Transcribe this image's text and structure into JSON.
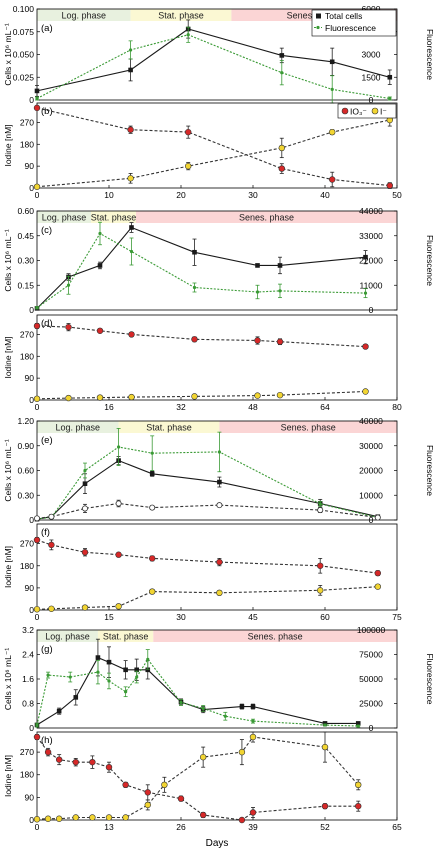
{
  "days_label": "Days",
  "phase_colors": {
    "log": "#e8f1df",
    "stat": "#fbf8d3",
    "senes": "#fbd5d5"
  },
  "series_colors": {
    "total": "#1a1a1a",
    "fluor": "#3a9a35",
    "iodate": "#d62828",
    "iodide": "#f2d532",
    "dashed": "#333333"
  },
  "chart_data": [
    {
      "id": "a",
      "type": "line",
      "ylabel": "Cells x 10⁶ mL⁻¹",
      "y2label": "Fluorescence",
      "xlim": [
        0,
        50
      ],
      "ylim": [
        0,
        0.1
      ],
      "y2lim": [
        0,
        6000
      ],
      "yticks": [
        "0",
        "0.025",
        "0.050",
        "0.075",
        "0.100"
      ],
      "ytick_values": [
        0,
        0.025,
        0.05,
        0.075,
        0.1
      ],
      "y2ticks": [
        "0",
        "1500",
        "3000",
        "4500",
        "6000"
      ],
      "y2tick_values": [
        0,
        1500,
        3000,
        4500,
        6000
      ],
      "phases": [
        {
          "label": "Log. phase",
          "kind": "log",
          "x0": 0,
          "x1": 13
        },
        {
          "label": "Stat. phase",
          "kind": "stat",
          "x0": 13,
          "x1": 27
        },
        {
          "label": "Senes. phase",
          "kind": "senes",
          "x0": 27,
          "x1": 50
        }
      ],
      "legend": [
        "Total cells",
        "Fluorescence"
      ],
      "series": [
        {
          "name": "Total cells",
          "axis": "y",
          "style": "total",
          "x": [
            0,
            13,
            21,
            34,
            41,
            49
          ],
          "y": [
            0.01,
            0.033,
            0.078,
            0.049,
            0.042,
            0.025
          ],
          "err": [
            0.006,
            0.012,
            0.01,
            0.008,
            0.015,
            0.008
          ]
        },
        {
          "name": "Fluorescence",
          "axis": "y2",
          "style": "fluor",
          "x": [
            0,
            13,
            21,
            34,
            41,
            49
          ],
          "y": [
            100,
            3300,
            4300,
            1800,
            700,
            100
          ],
          "err": [
            100,
            600,
            500,
            800,
            900,
            100
          ]
        }
      ]
    },
    {
      "id": "b",
      "type": "line",
      "ylabel": "Iodine [nM]",
      "xlim": [
        0,
        50
      ],
      "ylim": [
        0,
        350
      ],
      "yticks": [
        "0",
        "90",
        "180",
        "270"
      ],
      "ytick_values": [
        0,
        90,
        180,
        270
      ],
      "xticks": [
        "0",
        "10",
        "20",
        "30",
        "40",
        "50"
      ],
      "xtick_values": [
        0,
        10,
        20,
        30,
        40,
        50
      ],
      "legend": [
        "IO₃⁻",
        "I⁻"
      ],
      "series": [
        {
          "name": "IO₃⁻",
          "style": "iodate",
          "x": [
            0,
            13,
            21,
            34,
            41,
            49
          ],
          "y": [
            330,
            240,
            230,
            80,
            35,
            10
          ],
          "err": [
            8,
            15,
            25,
            20,
            30,
            12
          ]
        },
        {
          "name": "I⁻",
          "style": "iodide",
          "x": [
            0,
            13,
            21,
            34,
            41,
            49
          ],
          "y": [
            5,
            40,
            90,
            165,
            230,
            280
          ],
          "err": [
            5,
            20,
            15,
            40,
            10,
            25
          ]
        }
      ]
    },
    {
      "id": "c",
      "type": "line",
      "ylabel": "Cells x 10⁶ mL⁻¹",
      "y2label": "Fluorescence",
      "xlim": [
        0,
        80
      ],
      "ylim": [
        0,
        0.6
      ],
      "y2lim": [
        0,
        44000
      ],
      "yticks": [
        "0",
        "0.15",
        "0.30",
        "0.45",
        "0.60"
      ],
      "ytick_values": [
        0,
        0.15,
        0.3,
        0.45,
        0.6
      ],
      "y2ticks": [
        "0",
        "11000",
        "22000",
        "33000",
        "44000"
      ],
      "y2tick_values": [
        0,
        11000,
        22000,
        33000,
        44000
      ],
      "phases": [
        {
          "label": "Log. phase",
          "kind": "log",
          "x0": 0,
          "x1": 12
        },
        {
          "label": "Stat. phase",
          "kind": "stat",
          "x0": 12,
          "x1": 22
        },
        {
          "label": "Senes. phase",
          "kind": "senes",
          "x0": 22,
          "x1": 80
        }
      ],
      "series": [
        {
          "name": "Total cells",
          "axis": "y",
          "style": "total",
          "x": [
            0,
            7,
            14,
            21,
            35,
            49,
            54,
            73
          ],
          "y": [
            0.01,
            0.2,
            0.27,
            0.5,
            0.35,
            0.27,
            0.27,
            0.32
          ],
          "err": [
            0.01,
            0.02,
            0.02,
            0.03,
            0.08,
            0.01,
            0.05,
            0.04
          ]
        },
        {
          "name": "Fluorescence",
          "axis": "y2",
          "style": "fluor",
          "x": [
            0,
            7,
            14,
            21,
            35,
            49,
            54,
            73
          ],
          "y": [
            1000,
            11000,
            34000,
            26000,
            10000,
            8000,
            8500,
            7500
          ],
          "err": [
            500,
            4000,
            5000,
            6000,
            2000,
            3000,
            3000,
            2000
          ]
        }
      ]
    },
    {
      "id": "d",
      "type": "line",
      "ylabel": "Iodine [nM]",
      "xlim": [
        0,
        80
      ],
      "ylim": [
        0,
        350
      ],
      "yticks": [
        "0",
        "90",
        "180",
        "270"
      ],
      "ytick_values": [
        0,
        90,
        180,
        270
      ],
      "xticks": [
        "0",
        "16",
        "32",
        "48",
        "64",
        "80"
      ],
      "xtick_values": [
        0,
        16,
        32,
        48,
        64,
        80
      ],
      "series": [
        {
          "name": "IO₃⁻",
          "style": "iodate",
          "x": [
            0,
            7,
            14,
            21,
            35,
            49,
            54,
            73
          ],
          "y": [
            305,
            300,
            285,
            270,
            250,
            245,
            240,
            220
          ],
          "err": [
            10,
            15,
            8,
            8,
            10,
            15,
            12,
            8
          ]
        },
        {
          "name": "I⁻",
          "style": "iodide",
          "x": [
            0,
            7,
            14,
            21,
            35,
            49,
            54,
            73
          ],
          "y": [
            5,
            8,
            10,
            12,
            15,
            18,
            20,
            35
          ],
          "err": [
            3,
            3,
            4,
            4,
            4,
            5,
            5,
            5
          ]
        }
      ]
    },
    {
      "id": "e",
      "type": "line",
      "ylabel": "Cells x 10⁶ mL⁻¹",
      "y2label": "Fluorescence",
      "xlim": [
        0,
        75
      ],
      "ylim": [
        0,
        1.2
      ],
      "y2lim": [
        0,
        40000
      ],
      "yticks": [
        "0",
        "0.30",
        "0.60",
        "0.90",
        "1.20"
      ],
      "ytick_values": [
        0,
        0.3,
        0.6,
        0.9,
        1.2
      ],
      "y2ticks": [
        "0",
        "10000",
        "20000",
        "30000",
        "40000"
      ],
      "y2tick_values": [
        0,
        10000,
        20000,
        30000,
        40000
      ],
      "phases": [
        {
          "label": "Log. phase",
          "kind": "log",
          "x0": 0,
          "x1": 17
        },
        {
          "label": "Stat. phase",
          "kind": "stat",
          "x0": 17,
          "x1": 38
        },
        {
          "label": "Senes. phase",
          "kind": "senes",
          "x0": 38,
          "x1": 75
        }
      ],
      "series": [
        {
          "name": "Total cells",
          "axis": "y",
          "style": "total",
          "x": [
            0,
            3,
            10,
            17,
            24,
            38,
            59,
            71
          ],
          "y": [
            0.01,
            0.04,
            0.44,
            0.72,
            0.56,
            0.46,
            0.2,
            0.04
          ],
          "err": [
            0.01,
            0.02,
            0.12,
            0.05,
            0.03,
            0.06,
            0.05,
            0.01
          ]
        },
        {
          "name": "Fluorescence",
          "axis": "y2",
          "style": "fluor",
          "x": [
            0,
            3,
            10,
            17,
            24,
            38,
            59,
            71
          ],
          "y": [
            500,
            1000,
            20000,
            29500,
            27000,
            27500,
            6500,
            1000
          ],
          "err": [
            300,
            500,
            3000,
            7500,
            7000,
            8000,
            1000,
            300
          ]
        },
        {
          "name": "",
          "axis": "y",
          "style": "dashed",
          "x": [
            0,
            3,
            10,
            17,
            24,
            38,
            59,
            71
          ],
          "y": [
            0.02,
            0.04,
            0.14,
            0.2,
            0.15,
            0.18,
            0.12,
            0.03
          ],
          "err": [
            0.01,
            0.02,
            0.05,
            0.04,
            0.02,
            0.02,
            0.03,
            0.01
          ]
        }
      ]
    },
    {
      "id": "f",
      "type": "line",
      "ylabel": "Iodine [nM]",
      "xlim": [
        0,
        75
      ],
      "ylim": [
        0,
        350
      ],
      "yticks": [
        "0",
        "90",
        "180",
        "270"
      ],
      "ytick_values": [
        0,
        90,
        180,
        270
      ],
      "xticks": [
        "0",
        "15",
        "30",
        "45",
        "60",
        "75"
      ],
      "xtick_values": [
        0,
        15,
        30,
        45,
        60,
        75
      ],
      "series": [
        {
          "name": "IO₃⁻",
          "style": "iodate",
          "x": [
            0,
            3,
            10,
            17,
            24,
            38,
            59,
            71
          ],
          "y": [
            285,
            265,
            235,
            225,
            210,
            195,
            180,
            150
          ],
          "err": [
            10,
            20,
            15,
            8,
            10,
            15,
            30,
            10
          ]
        },
        {
          "name": "I⁻",
          "style": "iodide",
          "x": [
            0,
            3,
            10,
            17,
            24,
            38,
            59,
            71
          ],
          "y": [
            3,
            5,
            10,
            15,
            75,
            70,
            80,
            95
          ],
          "err": [
            3,
            3,
            5,
            5,
            8,
            8,
            20,
            8
          ]
        }
      ]
    },
    {
      "id": "g",
      "type": "line",
      "ylabel": "Cells x 10⁶ mL⁻¹",
      "y2label": "Fluorescence",
      "xlim": [
        0,
        65
      ],
      "ylim": [
        0,
        3.2
      ],
      "y2lim": [
        0,
        100000
      ],
      "yticks": [
        "0",
        "0.8",
        "1.6",
        "2.4",
        "3.2"
      ],
      "ytick_values": [
        0,
        0.8,
        1.6,
        2.4,
        3.2
      ],
      "y2ticks": [
        "0",
        "25000",
        "50000",
        "75000",
        "100000"
      ],
      "y2tick_values": [
        0,
        25000,
        50000,
        75000,
        100000
      ],
      "phases": [
        {
          "label": "Log. phase",
          "kind": "log",
          "x0": 0,
          "x1": 11
        },
        {
          "label": "Stat. phase",
          "kind": "stat",
          "x0": 11,
          "x1": 21
        },
        {
          "label": "Senes. phase",
          "kind": "senes",
          "x0": 21,
          "x1": 65
        }
      ],
      "series": [
        {
          "name": "Total cells",
          "axis": "y",
          "style": "total",
          "x": [
            0,
            4,
            7,
            11,
            13,
            16,
            18,
            20,
            26,
            30,
            37,
            39,
            52,
            58
          ],
          "y": [
            0.1,
            0.55,
            1.0,
            2.3,
            2.15,
            1.9,
            1.9,
            1.9,
            0.85,
            0.6,
            0.7,
            0.7,
            0.15,
            0.15
          ],
          "err": [
            0.05,
            0.1,
            0.25,
            0.6,
            0.5,
            0.3,
            0.35,
            0.3,
            0.1,
            0.1,
            0.08,
            0.08,
            0.02,
            0.02
          ]
        },
        {
          "name": "Fluorescence",
          "axis": "y2",
          "style": "fluor",
          "x": [
            0,
            2,
            6,
            11,
            13,
            16,
            18,
            20,
            26,
            30,
            34,
            39,
            52,
            58
          ],
          "y": [
            3000,
            54000,
            52000,
            57000,
            48000,
            37000,
            52000,
            70000,
            26000,
            20000,
            12000,
            7000,
            3000,
            2000
          ],
          "err": [
            2000,
            3000,
            5000,
            12000,
            8000,
            5000,
            6000,
            10000,
            3000,
            3000,
            4000,
            2000,
            1000,
            1000
          ]
        }
      ]
    },
    {
      "id": "h",
      "type": "line",
      "ylabel": "Iodine [nM]",
      "xlabel": "Days",
      "xlim": [
        0,
        65
      ],
      "ylim": [
        0,
        350
      ],
      "yticks": [
        "0",
        "90",
        "180",
        "270"
      ],
      "ytick_values": [
        0,
        90,
        180,
        270
      ],
      "xticks": [
        "0",
        "13",
        "26",
        "39",
        "52",
        "65"
      ],
      "xtick_values": [
        0,
        13,
        26,
        39,
        52,
        65
      ],
      "series": [
        {
          "name": "IO₃⁻",
          "style": "iodate",
          "x": [
            0,
            2,
            4,
            7,
            10,
            13,
            16,
            20,
            26,
            30,
            37,
            39,
            52,
            58
          ],
          "y": [
            330,
            270,
            240,
            230,
            230,
            210,
            140,
            110,
            85,
            20,
            0,
            30,
            55,
            55
          ],
          "err": [
            10,
            15,
            20,
            15,
            25,
            20,
            10,
            30,
            10,
            10,
            5,
            20,
            10,
            20
          ]
        },
        {
          "name": "I⁻",
          "style": "iodide",
          "x": [
            0,
            2,
            4,
            7,
            10,
            13,
            16,
            20,
            23,
            30,
            37,
            39,
            52,
            58
          ],
          "y": [
            3,
            5,
            5,
            10,
            10,
            10,
            10,
            60,
            140,
            250,
            270,
            330,
            290,
            140
          ],
          "err": [
            3,
            3,
            3,
            5,
            5,
            5,
            5,
            20,
            30,
            40,
            50,
            20,
            60,
            20
          ]
        }
      ]
    }
  ]
}
